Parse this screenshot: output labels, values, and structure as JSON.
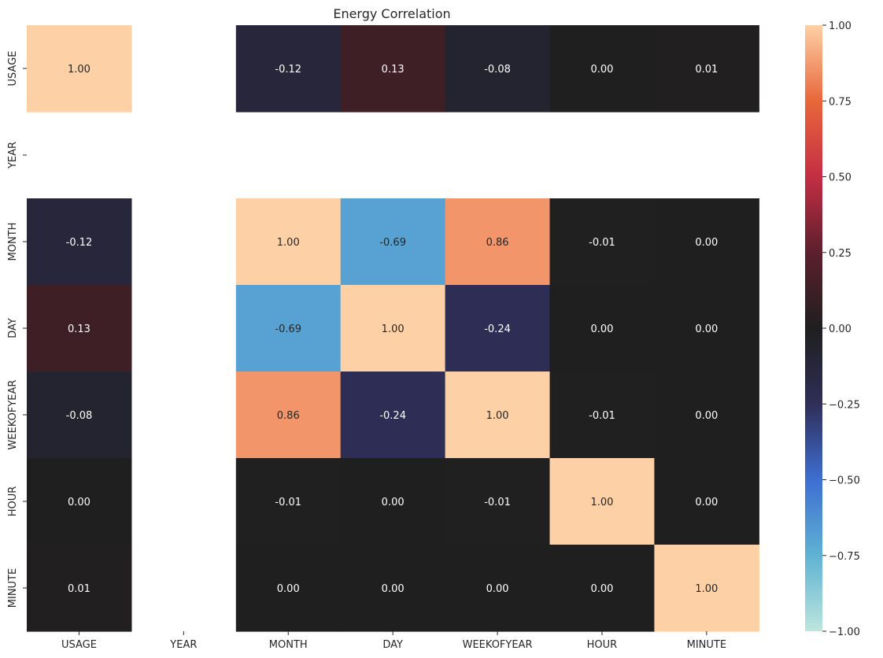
{
  "chart_data": {
    "type": "heatmap",
    "title": "Energy Correlation",
    "xlabel": "",
    "ylabel": "",
    "x_categories": [
      "USAGE",
      "YEAR",
      "MONTH",
      "DAY",
      "WEEKOFYEAR",
      "HOUR",
      "MINUTE"
    ],
    "y_categories": [
      "USAGE",
      "YEAR",
      "MONTH",
      "DAY",
      "WEEKOFYEAR",
      "HOUR",
      "MINUTE"
    ],
    "values": [
      [
        1.0,
        null,
        -0.12,
        0.13,
        -0.08,
        0.0,
        0.01
      ],
      [
        null,
        null,
        null,
        null,
        null,
        null,
        null
      ],
      [
        -0.12,
        null,
        1.0,
        -0.69,
        0.86,
        -0.01,
        -0.0
      ],
      [
        0.13,
        null,
        -0.69,
        1.0,
        -0.24,
        0.0,
        0.0
      ],
      [
        -0.08,
        null,
        0.86,
        -0.24,
        1.0,
        -0.01,
        -0.0
      ],
      [
        0.0,
        null,
        -0.01,
        0.0,
        -0.01,
        1.0,
        -0.0
      ],
      [
        0.01,
        null,
        -0.0,
        0.0,
        -0.0,
        -0.0,
        1.0
      ]
    ],
    "annotation_format": "0.00",
    "colorbar": {
      "range": [
        -1.0,
        1.0
      ],
      "ticks": [
        -1.0,
        -0.75,
        -0.5,
        -0.25,
        0.0,
        0.25,
        0.5,
        0.75,
        1.0
      ],
      "tick_labels": [
        "−1.00",
        "−0.75",
        "−0.50",
        "−0.25",
        "0.00",
        "0.25",
        "0.50",
        "0.75",
        "1.00"
      ],
      "colormap": "icefire",
      "center": 0.0
    },
    "colormap_stops": [
      {
        "v": -1.0,
        "color": "#bde6dd"
      },
      {
        "v": -0.75,
        "color": "#5fb2d3"
      },
      {
        "v": -0.5,
        "color": "#3e6ed2"
      },
      {
        "v": -0.25,
        "color": "#2f2e58"
      },
      {
        "v": 0.0,
        "color": "#1f1f1f"
      },
      {
        "v": 0.25,
        "color": "#5c1f2d"
      },
      {
        "v": 0.5,
        "color": "#c42e44"
      },
      {
        "v": 0.75,
        "color": "#e8673b"
      },
      {
        "v": 1.0,
        "color": "#fed0a6"
      }
    ]
  }
}
